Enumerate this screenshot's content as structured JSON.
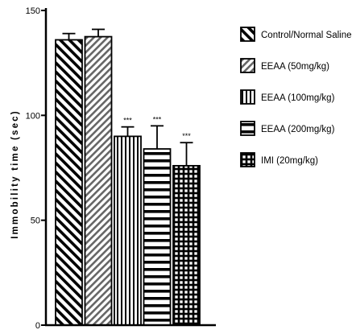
{
  "chart_data": {
    "type": "bar",
    "title": "",
    "xlabel": "",
    "ylabel": "Immobility time (sec)",
    "ylim": [
      0,
      150
    ],
    "yticks": [
      0,
      50,
      100,
      150
    ],
    "categories": [
      "Control/Normal Saline",
      "EEAA (50mg/kg)",
      "EEAA (100mg/kg)",
      "EEAA (200mg/kg)",
      "IMI (20mg/kg)"
    ],
    "values": [
      136,
      137.5,
      90,
      84,
      76
    ],
    "errors": [
      3,
      3.5,
      4.5,
      11,
      11
    ],
    "significance": [
      "",
      "",
      "***",
      "***",
      "***"
    ],
    "patterns": [
      "diagonal-back",
      "diagonal-forward",
      "vertical",
      "horizontal",
      "grid"
    ],
    "legend_position": "right",
    "grid": false
  }
}
